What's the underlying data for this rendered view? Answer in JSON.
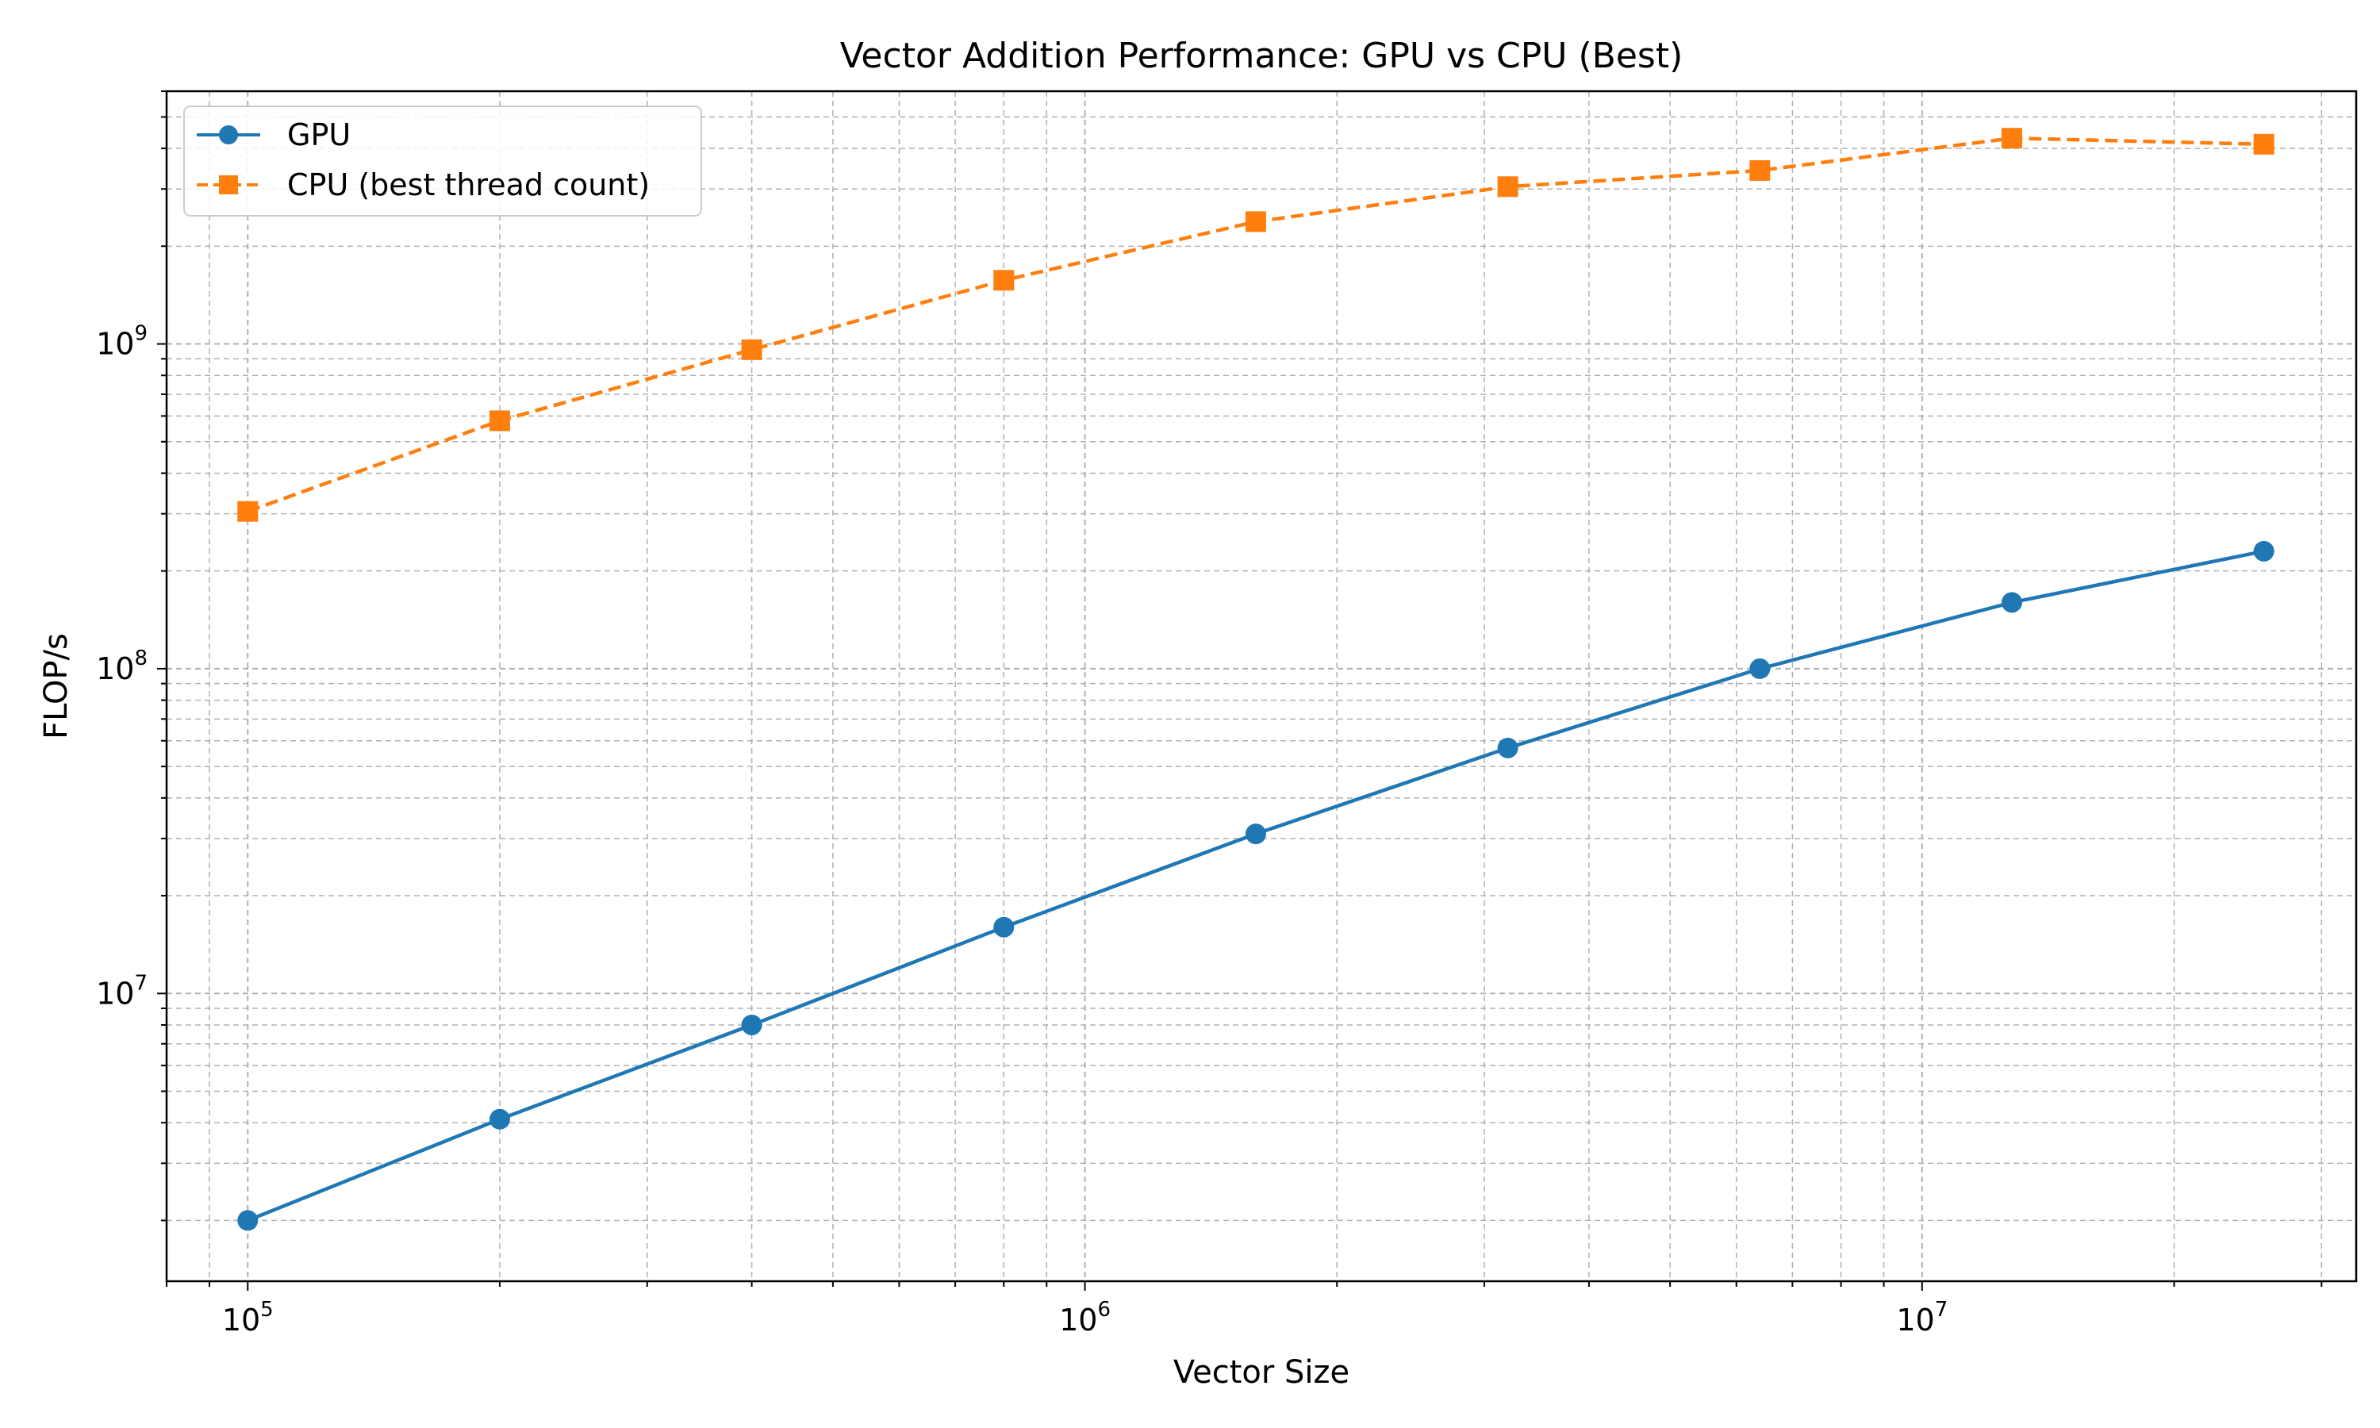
{
  "chart_data": {
    "type": "line",
    "title": "Vector Addition Performance: GPU vs CPU (Best)",
    "xlabel": "Vector Size",
    "ylabel": "FLOP/s",
    "xscale": "log",
    "yscale": "log",
    "xlim": [
      80000,
      33000000
    ],
    "ylim": [
      1300000,
      6000000000
    ],
    "x_ticks": [
      {
        "value": 100000,
        "base": "10",
        "exp": "5"
      },
      {
        "value": 1000000,
        "base": "10",
        "exp": "6"
      },
      {
        "value": 10000000,
        "base": "10",
        "exp": "7"
      }
    ],
    "y_ticks": [
      {
        "value": 10000000,
        "base": "10",
        "exp": "7"
      },
      {
        "value": 100000000,
        "base": "10",
        "exp": "8"
      },
      {
        "value": 1000000000,
        "base": "10",
        "exp": "9"
      }
    ],
    "grid": "major and minor, dashed",
    "legend_position": "top-left",
    "x": [
      100000,
      200000,
      400000,
      800000,
      1600000,
      3200000,
      6400000,
      12800000,
      25600000
    ],
    "series": [
      {
        "name": "GPU",
        "color": "#1f77b4",
        "line_style": "solid",
        "marker": "circle",
        "values": [
          2000000,
          4100000,
          8000000,
          16000000,
          31000000,
          57000000,
          100000000,
          160000000,
          230000000
        ]
      },
      {
        "name": "CPU (best thread count)",
        "color": "#ff7f0e",
        "line_style": "dashed",
        "marker": "square",
        "values": [
          305000000,
          580000000,
          960000000,
          1570000000,
          2380000000,
          3050000000,
          3420000000,
          4300000000,
          4120000000
        ]
      }
    ]
  }
}
